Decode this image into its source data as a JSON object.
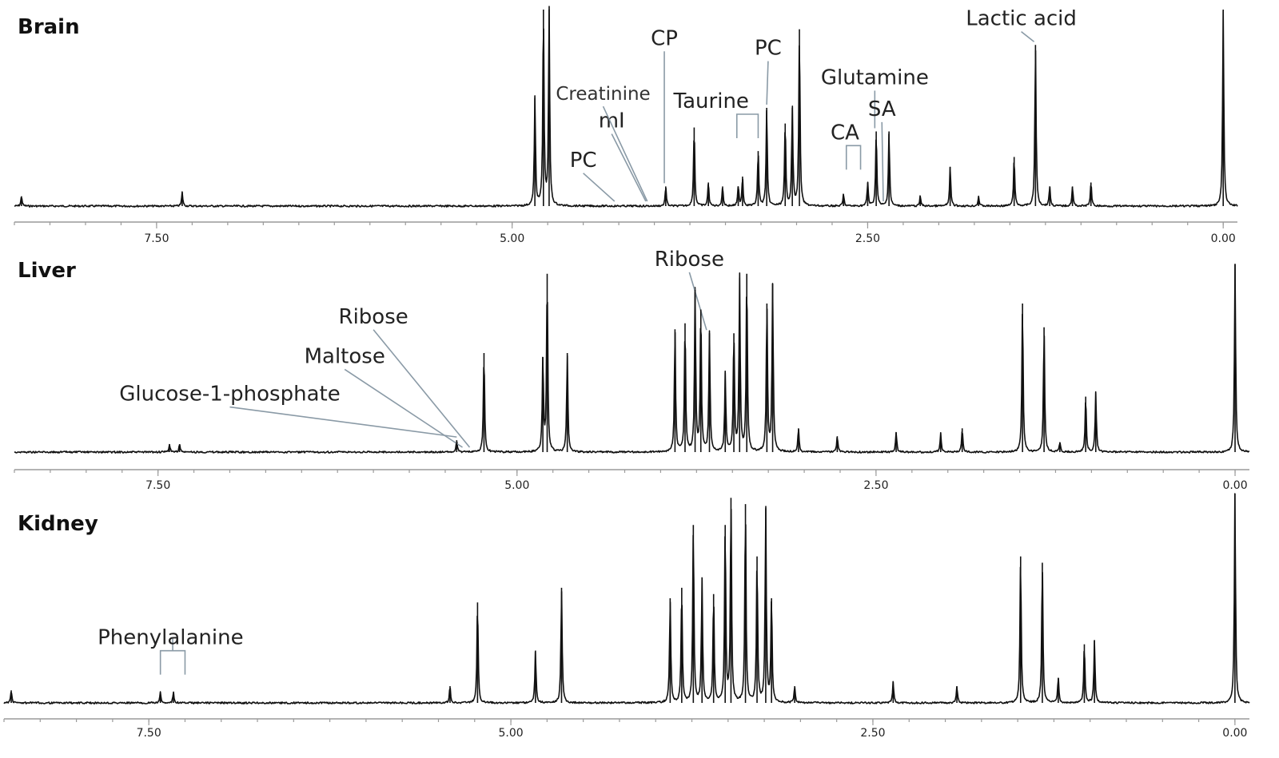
{
  "chart_data": [
    {
      "type": "line",
      "title": "Brain",
      "xlim": [
        8.5,
        -0.1
      ],
      "xaxis_reversed": true,
      "xticks": [
        7.5,
        5.0,
        2.5,
        0.0
      ],
      "xtick_labels": [
        "7.50",
        "5.00",
        "2.50",
        "0.00"
      ],
      "peaks": [
        {
          "ppm": 8.45,
          "h": 0.05
        },
        {
          "ppm": 7.32,
          "h": 0.07
        },
        {
          "ppm": 4.84,
          "h": 0.55
        },
        {
          "ppm": 4.78,
          "h": 1.0
        },
        {
          "ppm": 4.74,
          "h": 1.0
        },
        {
          "ppm": 3.92,
          "h": 0.1
        },
        {
          "ppm": 3.72,
          "h": 0.4
        },
        {
          "ppm": 3.62,
          "h": 0.12
        },
        {
          "ppm": 3.52,
          "h": 0.1
        },
        {
          "ppm": 3.41,
          "h": 0.1
        },
        {
          "ppm": 3.27,
          "h": 0.28
        },
        {
          "ppm": 3.38,
          "h": 0.15
        },
        {
          "ppm": 3.08,
          "h": 0.42
        },
        {
          "ppm": 3.03,
          "h": 0.5
        },
        {
          "ppm": 3.21,
          "h": 0.5
        },
        {
          "ppm": 2.98,
          "h": 0.9
        },
        {
          "ppm": 2.67,
          "h": 0.06
        },
        {
          "ppm": 2.5,
          "h": 0.12
        },
        {
          "ppm": 2.35,
          "h": 0.38
        },
        {
          "ppm": 2.44,
          "h": 0.38
        },
        {
          "ppm": 2.13,
          "h": 0.05
        },
        {
          "ppm": 1.92,
          "h": 0.2
        },
        {
          "ppm": 1.72,
          "h": 0.05
        },
        {
          "ppm": 1.47,
          "h": 0.25
        },
        {
          "ppm": 1.32,
          "h": 0.82
        },
        {
          "ppm": 1.22,
          "h": 0.1
        },
        {
          "ppm": 1.06,
          "h": 0.1
        },
        {
          "ppm": 0.93,
          "h": 0.12
        },
        {
          "ppm": 0.0,
          "h": 1.0
        }
      ],
      "annotations": [
        {
          "label": "PC",
          "ppm": 4.28,
          "text_ppm": 4.5,
          "text_level": 0.2
        },
        {
          "label": "mI",
          "ppm": 4.06,
          "text_ppm": 4.3,
          "text_level": 0.4
        },
        {
          "label": "Creatinine",
          "ppm": 4.05,
          "text_ppm": 4.36,
          "text_level": 0.54
        },
        {
          "label": "CP",
          "ppm": 3.93,
          "text_ppm": 3.93,
          "text_level": 0.82
        },
        {
          "label": "Taurine",
          "ppm": 3.35,
          "text_ppm": 3.6,
          "text_level": 0.5,
          "bracket": [
            3.42,
            3.27
          ]
        },
        {
          "label": "PC",
          "ppm": 3.21,
          "text_ppm": 3.2,
          "text_level": 0.77
        },
        {
          "label": "Glutamine",
          "ppm": 2.45,
          "text_ppm": 2.45,
          "text_level": 0.62
        },
        {
          "label": "CA",
          "ppm": 2.52,
          "text_ppm": 2.66,
          "text_level": 0.34,
          "bracket": [
            2.65,
            2.55
          ]
        },
        {
          "label": "SA",
          "ppm": 2.39,
          "text_ppm": 2.4,
          "text_level": 0.46
        },
        {
          "label": "Lactic acid",
          "ppm": 1.33,
          "text_ppm": 1.42,
          "text_level": 0.92
        }
      ]
    },
    {
      "type": "line",
      "title": "Liver",
      "xlim": [
        8.5,
        -0.1
      ],
      "xaxis_reversed": true,
      "xticks": [
        7.5,
        5.0,
        2.5,
        0.0
      ],
      "xtick_labels": [
        "7.50",
        "5.00",
        "2.50",
        "0.00"
      ],
      "peaks": [
        {
          "ppm": 7.42,
          "h": 0.04
        },
        {
          "ppm": 7.35,
          "h": 0.04
        },
        {
          "ppm": 5.42,
          "h": 0.06
        },
        {
          "ppm": 5.23,
          "h": 0.5
        },
        {
          "ppm": 4.65,
          "h": 0.5
        },
        {
          "ppm": 4.79,
          "h": 0.9
        },
        {
          "ppm": 4.82,
          "h": 0.48
        },
        {
          "ppm": 3.9,
          "h": 0.62
        },
        {
          "ppm": 3.83,
          "h": 0.65
        },
        {
          "ppm": 3.76,
          "h": 0.82
        },
        {
          "ppm": 3.72,
          "h": 0.72
        },
        {
          "ppm": 3.66,
          "h": 0.6
        },
        {
          "ppm": 3.55,
          "h": 0.4
        },
        {
          "ppm": 3.49,
          "h": 0.6
        },
        {
          "ppm": 3.45,
          "h": 0.88
        },
        {
          "ppm": 3.4,
          "h": 0.9
        },
        {
          "ppm": 3.26,
          "h": 0.75
        },
        {
          "ppm": 3.22,
          "h": 0.85
        },
        {
          "ppm": 3.04,
          "h": 0.12
        },
        {
          "ppm": 2.77,
          "h": 0.08
        },
        {
          "ppm": 2.36,
          "h": 0.1
        },
        {
          "ppm": 2.05,
          "h": 0.1
        },
        {
          "ppm": 1.9,
          "h": 0.12
        },
        {
          "ppm": 1.48,
          "h": 0.75
        },
        {
          "ppm": 1.33,
          "h": 0.63
        },
        {
          "ppm": 1.22,
          "h": 0.05
        },
        {
          "ppm": 1.04,
          "h": 0.28
        },
        {
          "ppm": 0.97,
          "h": 0.3
        },
        {
          "ppm": 0.0,
          "h": 0.95
        }
      ],
      "annotations": [
        {
          "label": "Glucose-1-phosphate",
          "ppm": 5.42,
          "text_ppm": 7.0,
          "text_level": 0.26
        },
        {
          "label": "Maltose",
          "ppm": 5.38,
          "text_ppm": 6.2,
          "text_level": 0.45
        },
        {
          "label": "Ribose",
          "ppm": 5.33,
          "text_ppm": 6.0,
          "text_level": 0.65
        },
        {
          "label": "Ribose",
          "ppm": 3.68,
          "text_ppm": 3.8,
          "text_level": 0.94
        }
      ]
    },
    {
      "type": "line",
      "title": "Kidney",
      "xlim": [
        8.5,
        -0.1
      ],
      "xaxis_reversed": true,
      "xticks": [
        7.5,
        5.0,
        2.5,
        0.0
      ],
      "xtick_labels": [
        "7.50",
        "5.00",
        "2.50",
        "0.00"
      ],
      "peaks": [
        {
          "ppm": 8.45,
          "h": 0.06
        },
        {
          "ppm": 7.42,
          "h": 0.05
        },
        {
          "ppm": 7.33,
          "h": 0.05
        },
        {
          "ppm": 5.42,
          "h": 0.08
        },
        {
          "ppm": 5.23,
          "h": 0.48
        },
        {
          "ppm": 4.83,
          "h": 0.25
        },
        {
          "ppm": 4.65,
          "h": 0.55
        },
        {
          "ppm": 3.9,
          "h": 0.5
        },
        {
          "ppm": 3.82,
          "h": 0.55
        },
        {
          "ppm": 3.74,
          "h": 0.85
        },
        {
          "ppm": 3.68,
          "h": 0.6
        },
        {
          "ppm": 3.6,
          "h": 0.52
        },
        {
          "ppm": 3.52,
          "h": 0.85
        },
        {
          "ppm": 3.48,
          "h": 0.98
        },
        {
          "ppm": 3.38,
          "h": 0.95
        },
        {
          "ppm": 3.3,
          "h": 0.7
        },
        {
          "ppm": 3.24,
          "h": 0.93
        },
        {
          "ppm": 3.2,
          "h": 0.5
        },
        {
          "ppm": 3.04,
          "h": 0.08
        },
        {
          "ppm": 2.36,
          "h": 0.1
        },
        {
          "ppm": 1.92,
          "h": 0.08
        },
        {
          "ppm": 1.48,
          "h": 0.7
        },
        {
          "ppm": 1.33,
          "h": 0.67
        },
        {
          "ppm": 1.22,
          "h": 0.12
        },
        {
          "ppm": 1.04,
          "h": 0.28
        },
        {
          "ppm": 0.97,
          "h": 0.3
        },
        {
          "ppm": 0.0,
          "h": 1.0
        }
      ],
      "annotations": [
        {
          "label": "Phenylalanine",
          "ppm": 7.35,
          "text_ppm": 7.35,
          "text_level": 0.28,
          "bracket": [
            7.42,
            7.25
          ]
        }
      ]
    }
  ]
}
